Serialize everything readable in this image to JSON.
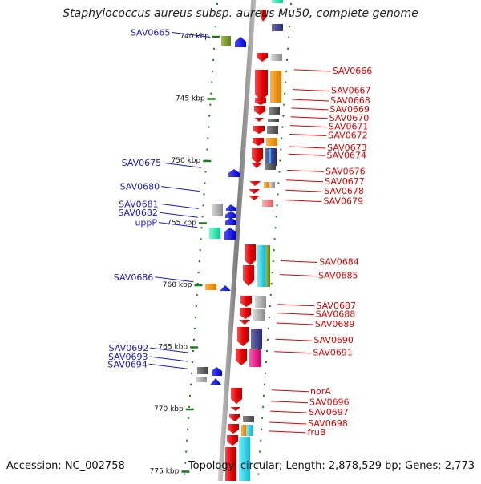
{
  "title": "Staphylococcus aureus subsp. aureus Mu50, complete genome",
  "footer": {
    "accession_label": "Accession: NC_002758",
    "summary_label": "Topology: circular; Length: 2,878,529 bp; Genes: 2,773"
  },
  "colors": {
    "axis": "#8a8a8a",
    "tick": "#1a7a1a",
    "forward_gene": "#e00000",
    "reverse_gene": "#0000ee",
    "left_label": "#1a1acc",
    "right_label": "#dd0000"
  },
  "scale": {
    "unit": "kbp",
    "ticks": [
      740,
      745,
      750,
      755,
      760,
      765,
      770,
      775
    ]
  },
  "left_genes": [
    {
      "label": "SAV0665",
      "kbp": 739.9
    },
    {
      "label": "SAV0675",
      "kbp": 750.4
    },
    {
      "label": "SAV0680",
      "kbp": 752.3
    },
    {
      "label": "SAV0681",
      "kbp": 753.7
    },
    {
      "label": "SAV0682",
      "kbp": 754.4
    },
    {
      "label": "uppP",
      "kbp": 755.2
    },
    {
      "label": "SAV0686",
      "kbp": 759.6
    },
    {
      "label": "SAV0692",
      "kbp": 765.3
    },
    {
      "label": "SAV0693",
      "kbp": 766.0
    },
    {
      "label": "SAV0694",
      "kbp": 766.6
    }
  ],
  "right_genes": [
    {
      "label": "SAV0666",
      "kbp": 742.7
    },
    {
      "label": "SAV0667",
      "kbp": 744.3
    },
    {
      "label": "SAV0668",
      "kbp": 745.1
    },
    {
      "label": "SAV0669",
      "kbp": 745.8
    },
    {
      "label": "SAV0670",
      "kbp": 746.5
    },
    {
      "label": "SAV0671",
      "kbp": 747.2
    },
    {
      "label": "SAV0672",
      "kbp": 747.9
    },
    {
      "label": "SAV0673",
      "kbp": 748.9
    },
    {
      "label": "SAV0674",
      "kbp": 749.5
    },
    {
      "label": "SAV0676",
      "kbp": 750.8
    },
    {
      "label": "SAV0677",
      "kbp": 751.6
    },
    {
      "label": "SAV0678",
      "kbp": 752.4
    },
    {
      "label": "SAV0679",
      "kbp": 753.2
    },
    {
      "label": "SAV0684",
      "kbp": 758.1
    },
    {
      "label": "SAV0685",
      "kbp": 759.2
    },
    {
      "label": "SAV0687",
      "kbp": 761.6
    },
    {
      "label": "SAV0688",
      "kbp": 762.3
    },
    {
      "label": "SAV0689",
      "kbp": 763.1
    },
    {
      "label": "SAV0690",
      "kbp": 764.4
    },
    {
      "label": "SAV0691",
      "kbp": 765.4
    },
    {
      "label": "norA",
      "kbp": 768.5
    },
    {
      "label": "SAV0696",
      "kbp": 769.4
    },
    {
      "label": "SAV0697",
      "kbp": 770.2
    },
    {
      "label": "SAV0698",
      "kbp": 771.1
    },
    {
      "label": "fruB",
      "kbp": 771.8
    }
  ]
}
